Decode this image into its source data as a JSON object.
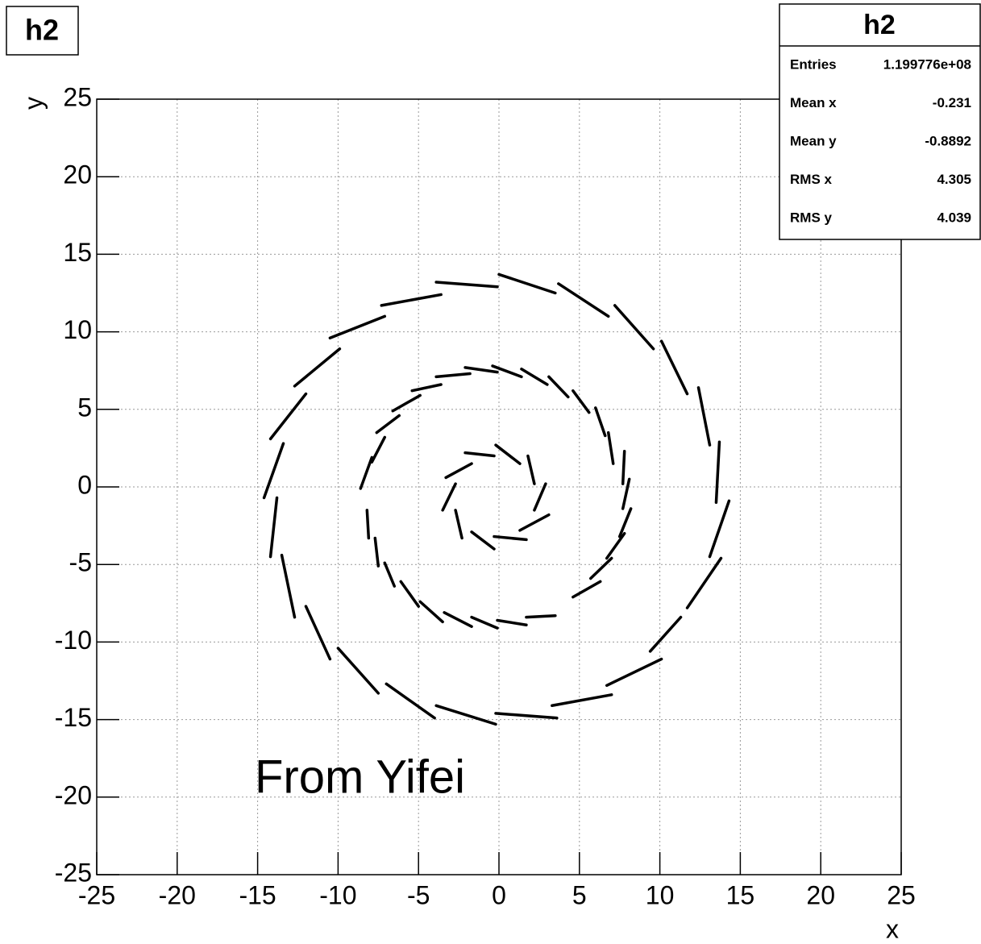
{
  "chart_data": {
    "type": "segments",
    "title": "h2",
    "xlabel": "x",
    "ylabel": "y",
    "annotation": "From Yifei",
    "xlim": [
      -25,
      25
    ],
    "ylim": [
      -25,
      25
    ],
    "xticks": [
      -25,
      -20,
      -15,
      -10,
      -5,
      0,
      5,
      10,
      15,
      20,
      25
    ],
    "yticks": [
      -25,
      -20,
      -15,
      -10,
      -5,
      0,
      5,
      10,
      15,
      20,
      25
    ],
    "grid": true,
    "color": "#000000",
    "stats": {
      "title": "h2",
      "rows": [
        [
          "Entries",
          "1.199776e+08"
        ],
        [
          "Mean x",
          "-0.231"
        ],
        [
          "Mean y",
          "-0.8892"
        ],
        [
          "RMS x",
          "4.305"
        ],
        [
          "RMS y",
          "4.039"
        ]
      ]
    },
    "segments": [
      {
        "x": [
          -3.9,
          -0.1
        ],
        "y": [
          13.2,
          12.9
        ]
      },
      {
        "x": [
          0,
          3.5
        ],
        "y": [
          13.7,
          12.5
        ]
      },
      {
        "x": [
          3.7,
          6.8
        ],
        "y": [
          13.1,
          11.0
        ]
      },
      {
        "x": [
          7.2,
          9.6
        ],
        "y": [
          11.7,
          8.9
        ]
      },
      {
        "x": [
          10.1,
          11.7
        ],
        "y": [
          9.4,
          6.0
        ]
      },
      {
        "x": [
          12.4,
          13.1
        ],
        "y": [
          6.4,
          2.7
        ]
      },
      {
        "x": [
          13.7,
          13.5
        ],
        "y": [
          2.9,
          -1.0
        ]
      },
      {
        "x": [
          14.3,
          13.1
        ],
        "y": [
          -0.9,
          -4.5
        ]
      },
      {
        "x": [
          13.8,
          11.7
        ],
        "y": [
          -4.6,
          -7.8
        ]
      },
      {
        "x": [
          11.3,
          9.4
        ],
        "y": [
          -8.4,
          -10.6
        ]
      },
      {
        "x": [
          10.1,
          6.7
        ],
        "y": [
          -11.1,
          -12.8
        ]
      },
      {
        "x": [
          7.0,
          3.3
        ],
        "y": [
          -13.4,
          -14.1
        ]
      },
      {
        "x": [
          3.6,
          -0.2
        ],
        "y": [
          -14.9,
          -14.6
        ]
      },
      {
        "x": [
          -0.2,
          -3.9
        ],
        "y": [
          -15.3,
          -14.1
        ]
      },
      {
        "x": [
          -4.0,
          -7.0
        ],
        "y": [
          -14.9,
          -12.7
        ]
      },
      {
        "x": [
          -7.5,
          -10.0
        ],
        "y": [
          -13.3,
          -10.4
        ]
      },
      {
        "x": [
          -10.5,
          -12.0
        ],
        "y": [
          -11.1,
          -7.7
        ]
      },
      {
        "x": [
          -12.7,
          -13.5
        ],
        "y": [
          -8.4,
          -4.4
        ]
      },
      {
        "x": [
          -14.2,
          -13.8
        ],
        "y": [
          -4.5,
          -0.7
        ]
      },
      {
        "x": [
          -14.6,
          -13.4
        ],
        "y": [
          -0.7,
          2.8
        ]
      },
      {
        "x": [
          -14.2,
          -12.0
        ],
        "y": [
          3.1,
          6.0
        ]
      },
      {
        "x": [
          -12.7,
          -9.9
        ],
        "y": [
          6.5,
          8.9
        ]
      },
      {
        "x": [
          -10.5,
          -7.1
        ],
        "y": [
          9.6,
          11.0
        ]
      },
      {
        "x": [
          -7.3,
          -3.6
        ],
        "y": [
          11.7,
          12.4
        ]
      },
      {
        "x": [
          -3.9,
          -1.8
        ],
        "y": [
          7.1,
          7.3
        ]
      },
      {
        "x": [
          -2.1,
          -0.1
        ],
        "y": [
          7.7,
          7.4
        ]
      },
      {
        "x": [
          -0.4,
          1.4
        ],
        "y": [
          7.8,
          7.1
        ]
      },
      {
        "x": [
          1.4,
          3.0
        ],
        "y": [
          7.6,
          6.6
        ]
      },
      {
        "x": [
          3.1,
          4.3
        ],
        "y": [
          7.1,
          5.8
        ]
      },
      {
        "x": [
          4.6,
          5.6
        ],
        "y": [
          6.2,
          4.8
        ]
      },
      {
        "x": [
          6.0,
          6.6
        ],
        "y": [
          5.1,
          3.3
        ]
      },
      {
        "x": [
          6.8,
          7.1
        ],
        "y": [
          3.5,
          1.5
        ]
      },
      {
        "x": [
          7.8,
          7.7
        ],
        "y": [
          2.3,
          0.2
        ]
      },
      {
        "x": [
          8.1,
          7.7
        ],
        "y": [
          0.5,
          -1.4
        ]
      },
      {
        "x": [
          8.2,
          7.5
        ],
        "y": [
          -1.4,
          -3.2
        ]
      },
      {
        "x": [
          7.8,
          6.7
        ],
        "y": [
          -3.0,
          -4.6
        ]
      },
      {
        "x": [
          7.0,
          5.7
        ],
        "y": [
          -4.6,
          -5.9
        ]
      },
      {
        "x": [
          6.3,
          4.6
        ],
        "y": [
          -6.1,
          -7.1
        ]
      },
      {
        "x": [
          3.5,
          1.7
        ],
        "y": [
          -8.3,
          -8.4
        ]
      },
      {
        "x": [
          1.7,
          -0.1
        ],
        "y": [
          -8.9,
          -8.6
        ]
      },
      {
        "x": [
          -0.1,
          -1.7
        ],
        "y": [
          -9.1,
          -8.4
        ]
      },
      {
        "x": [
          -1.7,
          -3.4
        ],
        "y": [
          -9.0,
          -8.1
        ]
      },
      {
        "x": [
          -3.5,
          -4.9
        ],
        "y": [
          -8.7,
          -7.4
        ]
      },
      {
        "x": [
          -5.0,
          -6.1
        ],
        "y": [
          -7.7,
          -6.1
        ]
      },
      {
        "x": [
          -6.5,
          -7.1
        ],
        "y": [
          -6.4,
          -4.9
        ]
      },
      {
        "x": [
          -7.5,
          -7.7
        ],
        "y": [
          -5.1,
          -3.3
        ]
      },
      {
        "x": [
          -8.1,
          -8.2
        ],
        "y": [
          -3.3,
          -1.5
        ]
      },
      {
        "x": [
          -8.6,
          -7.9
        ],
        "y": [
          -0.1,
          1.9
        ]
      },
      {
        "x": [
          -7.9,
          -7.1
        ],
        "y": [
          1.6,
          3.2
        ]
      },
      {
        "x": [
          -7.6,
          -6.2
        ],
        "y": [
          3.5,
          4.6
        ]
      },
      {
        "x": [
          -6.6,
          -4.9
        ],
        "y": [
          4.9,
          5.9
        ]
      },
      {
        "x": [
          -5.4,
          -3.6
        ],
        "y": [
          6.2,
          6.6
        ]
      },
      {
        "x": [
          -2.1,
          -0.3
        ],
        "y": [
          2.2,
          2.0
        ]
      },
      {
        "x": [
          -0.2,
          1.3
        ],
        "y": [
          2.7,
          1.5
        ]
      },
      {
        "x": [
          1.8,
          2.2
        ],
        "y": [
          2.0,
          0.2
        ]
      },
      {
        "x": [
          2.9,
          2.2
        ],
        "y": [
          0.2,
          -1.5
        ]
      },
      {
        "x": [
          3.1,
          1.3
        ],
        "y": [
          -1.8,
          -2.8
        ]
      },
      {
        "x": [
          1.7,
          -0.3
        ],
        "y": [
          -3.4,
          -3.2
        ]
      },
      {
        "x": [
          -0.3,
          -1.7
        ],
        "y": [
          -4.0,
          -2.9
        ]
      },
      {
        "x": [
          -2.3,
          -2.7
        ],
        "y": [
          -3.3,
          -1.5
        ]
      },
      {
        "x": [
          -3.5,
          -2.7
        ],
        "y": [
          -1.5,
          0.2
        ]
      },
      {
        "x": [
          -3.3,
          -1.7
        ],
        "y": [
          0.6,
          1.5
        ]
      }
    ]
  }
}
